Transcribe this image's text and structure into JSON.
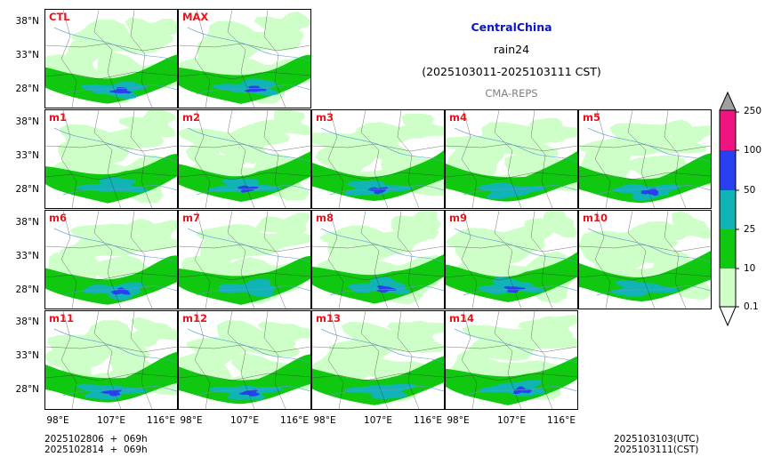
{
  "title": {
    "region": "CentralChina",
    "variable": "rain24",
    "period": "(2025103011-2025103111 CST)",
    "model": "CMA-REPS"
  },
  "colors": {
    "region_title": "#0a14c8",
    "model_title": "#808080",
    "panel_label": "#e8141e"
  },
  "panels": [
    {
      "label": "CTL"
    },
    {
      "label": "MAX"
    },
    {
      "label": "m1"
    },
    {
      "label": "m2"
    },
    {
      "label": "m3"
    },
    {
      "label": "m4"
    },
    {
      "label": "m5"
    },
    {
      "label": "m6"
    },
    {
      "label": "m7"
    },
    {
      "label": "m8"
    },
    {
      "label": "m9"
    },
    {
      "label": "m10"
    },
    {
      "label": "m11"
    },
    {
      "label": "m12"
    },
    {
      "label": "m13"
    },
    {
      "label": "m14"
    }
  ],
  "axes": {
    "lat_ticks": [
      "38°N",
      "33°N",
      "28°N"
    ],
    "lon_ticks": [
      "98°E",
      "107°E",
      "116°E"
    ]
  },
  "colorbar": {
    "levels": [
      "0.1",
      "10",
      "25",
      "50",
      "100",
      "250"
    ],
    "colors": [
      "#cfffc8",
      "#10c810",
      "#10b4b4",
      "#2840f0",
      "#f01480",
      "#a0a0a0"
    ]
  },
  "footer": {
    "init_line1": "2025102806  +  069h",
    "init_line2": "2025102814  +  069h",
    "valid_line1": "2025103103(UTC)",
    "valid_line2": "2025103111(CST)"
  }
}
